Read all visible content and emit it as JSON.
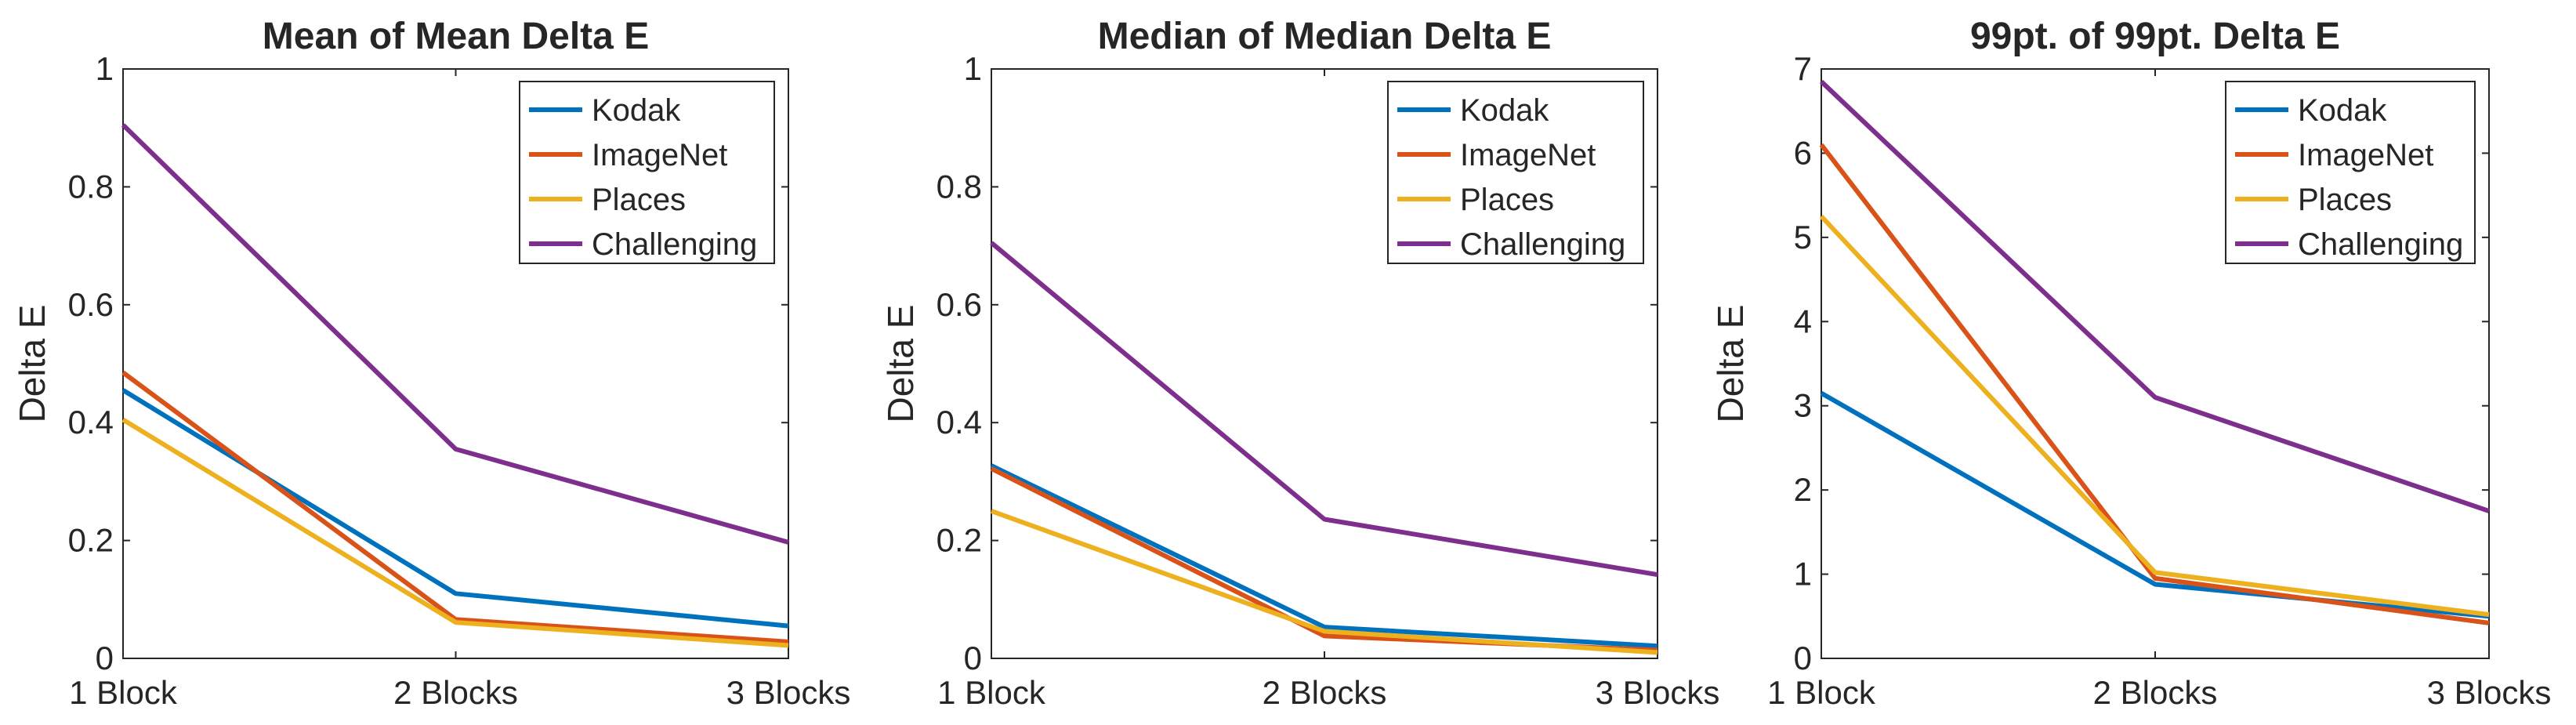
{
  "chart_data": [
    {
      "type": "line",
      "title": "Mean of Mean Delta E",
      "xlabel": "",
      "ylabel": "Delta E",
      "categories": [
        "1 Block",
        "2 Blocks",
        "3 Blocks"
      ],
      "ylim": [
        0,
        1
      ],
      "yticks": [
        "0",
        "0.2",
        "0.4",
        "0.6",
        "0.8",
        "1"
      ],
      "legend_position": "top-right",
      "series": [
        {
          "name": "Kodak",
          "color": "#0072BD",
          "values": [
            0.455,
            0.11,
            0.055
          ]
        },
        {
          "name": "ImageNet",
          "color": "#D95319",
          "values": [
            0.485,
            0.066,
            0.028
          ]
        },
        {
          "name": "Places",
          "color": "#EDB120",
          "values": [
            0.405,
            0.061,
            0.022
          ]
        },
        {
          "name": "Challenging",
          "color": "#7E2F8E",
          "values": [
            0.905,
            0.355,
            0.197
          ]
        }
      ]
    },
    {
      "type": "line",
      "title": "Median of Median Delta E",
      "xlabel": "",
      "ylabel": "Delta E",
      "categories": [
        "1 Block",
        "2 Blocks",
        "3 Blocks"
      ],
      "ylim": [
        0,
        1
      ],
      "yticks": [
        "0",
        "0.2",
        "0.4",
        "0.6",
        "0.8",
        "1"
      ],
      "legend_position": "top-right",
      "series": [
        {
          "name": "Kodak",
          "color": "#0072BD",
          "values": [
            0.327,
            0.053,
            0.021
          ]
        },
        {
          "name": "ImageNet",
          "color": "#D95319",
          "values": [
            0.322,
            0.038,
            0.014
          ]
        },
        {
          "name": "Places",
          "color": "#EDB120",
          "values": [
            0.25,
            0.046,
            0.01
          ]
        },
        {
          "name": "Challenging",
          "color": "#7E2F8E",
          "values": [
            0.705,
            0.236,
            0.142
          ]
        }
      ]
    },
    {
      "type": "line",
      "title": "99pt. of 99pt. Delta E",
      "xlabel": "",
      "ylabel": "Delta E",
      "categories": [
        "1 Block",
        "2 Blocks",
        "3 Blocks"
      ],
      "ylim": [
        0,
        7
      ],
      "yticks": [
        "0",
        "1",
        "2",
        "3",
        "4",
        "5",
        "6",
        "7"
      ],
      "legend_position": "top-right",
      "series": [
        {
          "name": "Kodak",
          "color": "#0072BD",
          "values": [
            3.15,
            0.88,
            0.5
          ]
        },
        {
          "name": "ImageNet",
          "color": "#D95319",
          "values": [
            6.1,
            0.95,
            0.42
          ]
        },
        {
          "name": "Places",
          "color": "#EDB120",
          "values": [
            5.25,
            1.02,
            0.52
          ]
        },
        {
          "name": "Challenging",
          "color": "#7E2F8E",
          "values": [
            6.85,
            3.1,
            1.75
          ]
        }
      ]
    }
  ]
}
